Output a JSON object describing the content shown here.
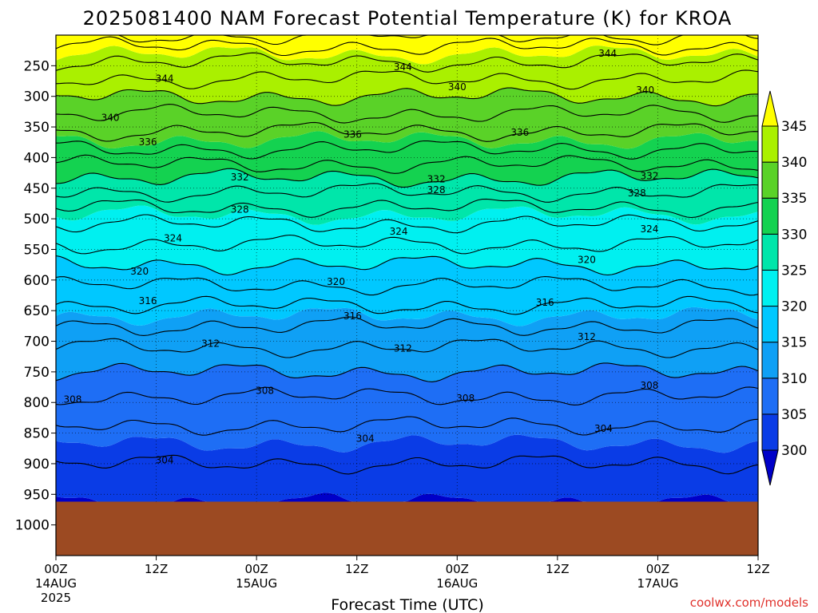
{
  "chart_data": {
    "type": "heatmap",
    "title": "2025081400 NAM Forecast Potential Temperature (K) for KROA",
    "xlabel": "Forecast Time (UTC)",
    "ylabel": "",
    "credit": "coolwx.com/models",
    "x_ticks": [
      {
        "hour": 0,
        "label": "00Z",
        "sub1": "14AUG",
        "sub2": "2025"
      },
      {
        "hour": 12,
        "label": "12Z",
        "sub1": "",
        "sub2": ""
      },
      {
        "hour": 24,
        "label": "00Z",
        "sub1": "15AUG",
        "sub2": ""
      },
      {
        "hour": 36,
        "label": "12Z",
        "sub1": "",
        "sub2": ""
      },
      {
        "hour": 48,
        "label": "00Z",
        "sub1": "16AUG",
        "sub2": ""
      },
      {
        "hour": 60,
        "label": "12Z",
        "sub1": "",
        "sub2": ""
      },
      {
        "hour": 72,
        "label": "00Z",
        "sub1": "17AUG",
        "sub2": ""
      },
      {
        "hour": 84,
        "label": "12Z",
        "sub1": "",
        "sub2": ""
      }
    ],
    "xlim": [
      0,
      84
    ],
    "y_ticks": [
      250,
      300,
      350,
      400,
      450,
      500,
      550,
      600,
      650,
      700,
      750,
      800,
      850,
      900,
      950,
      1000
    ],
    "ylim": [
      200,
      1050
    ],
    "grid": true,
    "surface_pressure": 962,
    "colorbar": {
      "levels": [
        300,
        305,
        310,
        315,
        320,
        325,
        330,
        335,
        340,
        345
      ],
      "colors": [
        "#0000c8",
        "#0a3ce6",
        "#1e6ef5",
        "#0fa0f5",
        "#00c8ff",
        "#00f0f0",
        "#00e6aa",
        "#14d250",
        "#5ad228",
        "#aaf000",
        "#ffff00"
      ],
      "labels": [
        "300",
        "305",
        "310",
        "315",
        "320",
        "325",
        "330",
        "335",
        "340",
        "345"
      ]
    },
    "profile_theta": {
      "pressure": [
        962,
        950,
        900,
        850,
        800,
        750,
        700,
        650,
        600,
        550,
        500,
        450,
        400,
        350,
        300,
        250,
        200
      ],
      "theta": [
        302.5,
        303,
        304,
        305.5,
        307.5,
        310,
        312.5,
        315.5,
        318.5,
        321.5,
        324.5,
        328.5,
        333,
        336.5,
        340,
        343.5,
        347.5
      ]
    },
    "contour_labels": [
      {
        "text": "344",
        "hour": 13,
        "p": 271
      },
      {
        "text": "344",
        "hour": 41.5,
        "p": 252
      },
      {
        "text": "344",
        "hour": 66,
        "p": 230
      },
      {
        "text": "340",
        "hour": 6.5,
        "p": 335
      },
      {
        "text": "340",
        "hour": 48,
        "p": 285
      },
      {
        "text": "340",
        "hour": 70.5,
        "p": 290
      },
      {
        "text": "336",
        "hour": 11,
        "p": 375
      },
      {
        "text": "336",
        "hour": 35.5,
        "p": 362
      },
      {
        "text": "336",
        "hour": 55.5,
        "p": 359
      },
      {
        "text": "332",
        "hour": 22,
        "p": 432
      },
      {
        "text": "332",
        "hour": 45.5,
        "p": 435
      },
      {
        "text": "332",
        "hour": 71,
        "p": 430
      },
      {
        "text": "328",
        "hour": 22,
        "p": 485
      },
      {
        "text": "328",
        "hour": 45.5,
        "p": 453
      },
      {
        "text": "328",
        "hour": 69.5,
        "p": 458
      },
      {
        "text": "324",
        "hour": 14,
        "p": 532
      },
      {
        "text": "324",
        "hour": 41,
        "p": 521
      },
      {
        "text": "324",
        "hour": 71,
        "p": 517
      },
      {
        "text": "320",
        "hour": 10,
        "p": 586
      },
      {
        "text": "320",
        "hour": 33.5,
        "p": 603
      },
      {
        "text": "320",
        "hour": 63.5,
        "p": 567
      },
      {
        "text": "316",
        "hour": 11,
        "p": 634
      },
      {
        "text": "316",
        "hour": 35.5,
        "p": 659
      },
      {
        "text": "316",
        "hour": 58.5,
        "p": 637
      },
      {
        "text": "312",
        "hour": 18.5,
        "p": 704
      },
      {
        "text": "312",
        "hour": 41.5,
        "p": 712
      },
      {
        "text": "312",
        "hour": 63.5,
        "p": 693
      },
      {
        "text": "308",
        "hour": 2,
        "p": 795
      },
      {
        "text": "308",
        "hour": 25,
        "p": 781
      },
      {
        "text": "308",
        "hour": 49,
        "p": 793
      },
      {
        "text": "308",
        "hour": 71,
        "p": 772
      },
      {
        "text": "304",
        "hour": 13,
        "p": 894
      },
      {
        "text": "304",
        "hour": 37,
        "p": 859
      },
      {
        "text": "304",
        "hour": 65.5,
        "p": 843
      }
    ]
  }
}
